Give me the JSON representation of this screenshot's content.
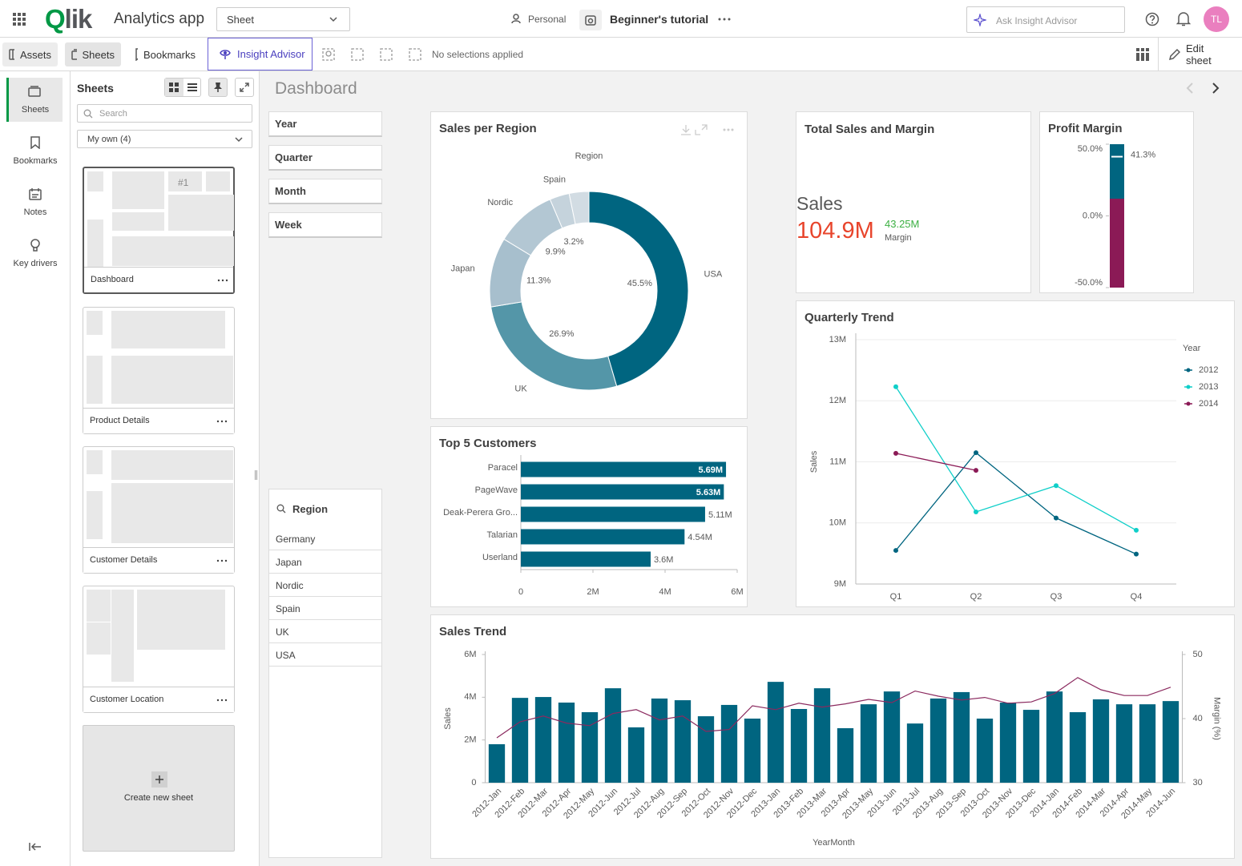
{
  "top_bar": {
    "logo": "Qlik",
    "app_name": "Analytics app",
    "sheet_dropdown": "Sheet",
    "space": "Personal",
    "app_title": "Beginner's tutorial",
    "search_placeholder": "Ask Insight Advisor",
    "avatar": "TL"
  },
  "toolbar": {
    "assets": "Assets",
    "sheets": "Sheets",
    "bookmarks": "Bookmarks",
    "insight_advisor": "Insight Advisor",
    "selections": "No selections applied",
    "edit_sheet": "Edit sheet"
  },
  "rail": [
    "Sheets",
    "Bookmarks",
    "Notes",
    "Key drivers"
  ],
  "sheets_panel": {
    "title": "Sheets",
    "search_placeholder": "Search",
    "filter": "My own (4)",
    "thumbnail_rank": "#1",
    "sheets": [
      "Dashboard",
      "Product Details",
      "Customer Details",
      "Customer Location"
    ],
    "create": "Create new sheet"
  },
  "sheet": {
    "title": "Dashboard",
    "filters": [
      "Year",
      "Quarter",
      "Month",
      "Week"
    ],
    "region_filter": {
      "title": "Region",
      "items": [
        "Germany",
        "Japan",
        "Nordic",
        "Spain",
        "UK",
        "USA"
      ]
    },
    "kpi": {
      "title": "Total Sales and Margin",
      "label": "Sales",
      "value": "104.9M",
      "secondary_value": "43.25M",
      "secondary_label": "Margin"
    }
  },
  "chart_data": [
    {
      "type": "pie",
      "title": "Sales per Region",
      "legend_title": "Region",
      "categories": [
        "USA",
        "UK",
        "Japan",
        "Nordic",
        "Spain",
        null
      ],
      "values": [
        45.5,
        26.9,
        11.3,
        9.9,
        3.2,
        3.2
      ],
      "value_labels": [
        "45.5%",
        "26.9%",
        "11.3%",
        "9.9%",
        "3.2%",
        null
      ],
      "colors": [
        "#006580",
        "#5496a8",
        "#a7bfcd",
        "#b3c7d3",
        "#c5d3dc",
        "#d2dce3"
      ]
    },
    {
      "type": "bar",
      "title": "Top 5 Customers",
      "orientation": "horizontal",
      "categories": [
        "Paracel",
        "PageWave",
        "Deak-Perera Gro...",
        "Talarian",
        "Userland"
      ],
      "values": [
        5690000,
        5630000,
        5110000,
        4540000,
        3600000
      ],
      "value_labels": [
        "5.69M",
        "5.63M",
        "5.11M",
        "4.54M",
        "3.6M"
      ],
      "color": "#006580",
      "xlim": [
        0,
        6000000
      ],
      "xticks": [
        0,
        {
          "value": 2000000,
          "label": "2M"
        },
        {
          "value": 4000000,
          "label": "4M"
        },
        {
          "value": 6000000,
          "label": "6M"
        }
      ]
    },
    {
      "type": "gauge",
      "title": "Profit Margin",
      "value": 41.3,
      "value_label": "41.3%",
      "ylim": [
        -50,
        50
      ],
      "yticks": [
        {
          "value": 50,
          "label": "50.0%"
        },
        {
          "value": 0,
          "label": "0.0%"
        },
        {
          "value": -50,
          "label": "-50.0%"
        }
      ],
      "segment_limits": [
        12
      ],
      "colors": [
        "#8b1a56",
        "#006580"
      ]
    },
    {
      "type": "line",
      "title": "Quarterly Trend",
      "y_label": "Sales",
      "legend_title": "Year",
      "legend": "right",
      "grid": true,
      "categories": [
        "Q1",
        "Q2",
        "Q3",
        "Q4"
      ],
      "series": [
        {
          "name": "2012",
          "color": "#006580",
          "values": [
            9550000,
            11150000,
            10080000,
            9490000
          ]
        },
        {
          "name": "2013",
          "color": "#10cfc9",
          "values": [
            12230000,
            10180000,
            10610000,
            9880000
          ]
        },
        {
          "name": "2014",
          "color": "#8b1a56",
          "values": [
            11140000,
            10860000,
            null,
            null
          ]
        }
      ],
      "ylim": [
        9000000,
        13000000
      ],
      "yticks": [
        {
          "value": 9000000,
          "label": "9M"
        },
        {
          "value": 10000000,
          "label": "10M"
        },
        {
          "value": 11000000,
          "label": "11M"
        },
        {
          "value": 12000000,
          "label": "12M"
        },
        {
          "value": 13000000,
          "label": "13M"
        }
      ]
    },
    {
      "type": "combo",
      "title": "Sales Trend",
      "x_label": "YearMonth",
      "y_label": "Sales",
      "y2_label": "Margin (%)",
      "grid": false,
      "categories": [
        "2012-Jan",
        "2012-Feb",
        "2012-Mar",
        "2012-Apr",
        "2012-May",
        "2012-Jun",
        "2012-Jul",
        "2012-Aug",
        "2012-Sep",
        "2012-Oct",
        "2012-Nov",
        "2012-Dec",
        "2013-Jan",
        "2013-Feb",
        "2013-Mar",
        "2013-Apr",
        "2013-May",
        "2013-Jun",
        "2013-Jul",
        "2013-Aug",
        "2013-Sep",
        "2013-Oct",
        "2013-Nov",
        "2013-Dec",
        "2014-Jan",
        "2014-Feb",
        "2014-Mar",
        "2014-Apr",
        "2014-May",
        "2014-Jun"
      ],
      "series": [
        {
          "type": "bar",
          "color": "#006580",
          "values": [
            1800000,
            3970000,
            4010000,
            3750000,
            3300000,
            4420000,
            2590000,
            3940000,
            3860000,
            3110000,
            3640000,
            3000000,
            4720000,
            3450000,
            4420000,
            2550000,
            3670000,
            4270000,
            2770000,
            3940000,
            4240000,
            3000000,
            3750000,
            3410000,
            4270000,
            3300000,
            3900000,
            3670000,
            3670000,
            3820000
          ]
        },
        {
          "type": "line",
          "axis": "y2",
          "color": "#8b2a5f",
          "values": [
            37.0,
            39.5,
            40.4,
            39.3,
            38.9,
            40.8,
            41.4,
            39.8,
            40.4,
            38.0,
            38.3,
            42.0,
            41.4,
            42.4,
            41.8,
            42.3,
            43.0,
            42.5,
            44.3,
            43.5,
            42.9,
            43.3,
            42.4,
            42.6,
            43.9,
            46.4,
            44.5,
            43.6,
            43.6,
            44.9
          ]
        }
      ],
      "ylim": [
        0,
        6000000
      ],
      "yticks": [
        0,
        {
          "value": 2000000,
          "label": "2M"
        },
        {
          "value": 4000000,
          "label": "4M"
        },
        {
          "value": 6000000,
          "label": "6M"
        }
      ],
      "y2lim": [
        30,
        50
      ],
      "y2ticks": [
        30,
        40,
        50
      ]
    }
  ]
}
